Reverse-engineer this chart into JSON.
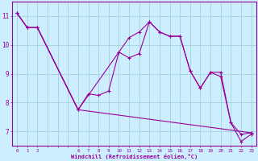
{
  "background_color": "#cceeff",
  "grid_color": "#99cccc",
  "line_color": "#990099",
  "marker_color": "#990099",
  "xlabel": "Windchill (Refroidissement éolien,°C)",
  "xlabel_color": "#990099",
  "tick_color": "#990099",
  "ylim": [
    6.5,
    11.5
  ],
  "yticks": [
    7,
    8,
    9,
    10,
    11
  ],
  "xlim": [
    -0.5,
    23.5
  ],
  "lines": [
    {
      "x": [
        0,
        1,
        2,
        6,
        7,
        8,
        9,
        10,
        11,
        12,
        13,
        14,
        15,
        16,
        17,
        18,
        19,
        20,
        21,
        22,
        23
      ],
      "y": [
        11.1,
        10.6,
        10.6,
        7.75,
        8.3,
        8.25,
        8.4,
        9.75,
        10.25,
        10.45,
        10.8,
        10.45,
        10.3,
        10.3,
        9.1,
        8.5,
        9.05,
        9.05,
        7.3,
        6.65,
        6.9
      ],
      "linewidth": 0.8
    },
    {
      "x": [
        0,
        1,
        2,
        6,
        10,
        11,
        12,
        13,
        14,
        15,
        16,
        17,
        18,
        19,
        20,
        21,
        22,
        23
      ],
      "y": [
        11.1,
        10.6,
        10.6,
        7.75,
        9.75,
        9.55,
        9.7,
        10.8,
        10.45,
        10.3,
        10.3,
        9.1,
        8.5,
        9.05,
        8.9,
        7.3,
        6.9,
        6.95
      ],
      "linewidth": 0.8
    },
    {
      "x": [
        0,
        1,
        2,
        6,
        23
      ],
      "y": [
        11.1,
        10.6,
        10.6,
        7.75,
        6.95
      ],
      "linewidth": 0.8
    }
  ],
  "xtick_labels": [
    "0",
    "1",
    "2",
    "",
    "",
    "",
    "6",
    "7",
    "8",
    "9",
    "10",
    "11",
    "12",
    "13",
    "14",
    "15",
    "16",
    "17",
    "18",
    "19",
    "20",
    "21",
    "22",
    "23"
  ]
}
